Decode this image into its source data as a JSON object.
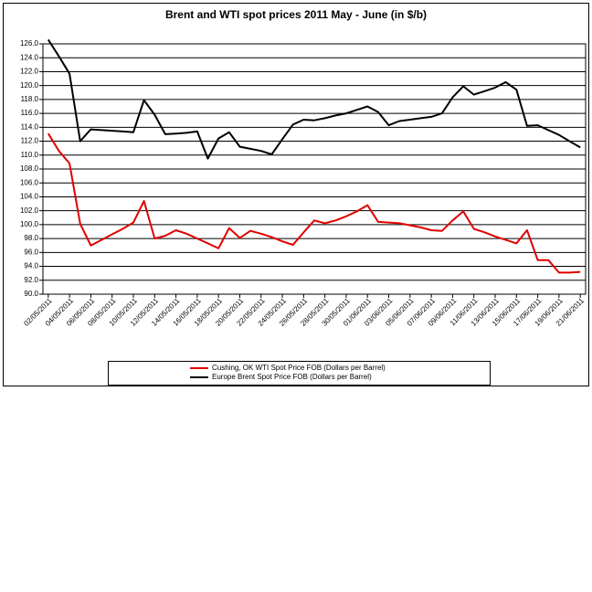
{
  "chart_data": {
    "type": "line",
    "title": "Brent and WTI spot prices 2011 May - June (in $/b)",
    "categories": [
      "02/05/2011",
      null,
      "04/05/2011",
      null,
      "06/05/2011",
      null,
      "08/05/2011",
      null,
      "10/05/2011",
      null,
      "12/05/2011",
      null,
      "14/05/2011",
      null,
      "16/05/2011",
      null,
      "18/05/2011",
      null,
      "20/05/2011",
      null,
      "22/05/2011",
      null,
      "24/05/2011",
      null,
      "26/05/2011",
      null,
      "28/05/2011",
      null,
      "30/05/2011",
      null,
      "01/06/2011",
      null,
      "03/06/2011",
      null,
      "05/06/2011",
      null,
      "07/06/2011",
      null,
      "09/06/2011",
      null,
      "11/06/2011",
      null,
      "13/06/2011",
      null,
      "15/06/2011",
      null,
      "17/06/2011",
      null,
      "19/06/2011",
      null,
      "21/06/2011"
    ],
    "series": [
      {
        "name": "Cushing, OK WTI Spot Price FOB (Dollars per Barrel)",
        "color": "#e00000",
        "values": [
          113.1,
          110.6,
          108.8,
          100.1,
          97.0,
          97.8,
          98.6,
          99.4,
          100.3,
          103.4,
          98.0,
          98.4,
          99.2,
          98.7,
          98.0,
          97.3,
          96.6,
          99.5,
          98.1,
          99.1,
          98.7,
          98.2,
          97.6,
          97.1,
          98.9,
          100.6,
          100.2,
          100.6,
          101.2,
          101.9,
          102.8,
          100.4,
          100.3,
          100.2,
          99.9,
          99.6,
          99.2,
          99.1,
          100.6,
          101.9,
          99.4,
          98.9,
          98.3,
          97.8,
          97.3,
          99.2,
          94.9,
          94.9,
          93.1,
          93.1,
          93.2
        ]
      },
      {
        "name": "Europe Brent Spot Price FOB (Dollars per Barrel)",
        "color": "#000000",
        "values": [
          126.6,
          124.2,
          121.7,
          112.0,
          113.7,
          113.6,
          113.5,
          113.4,
          113.3,
          117.9,
          115.8,
          113.0,
          113.1,
          113.2,
          113.4,
          109.5,
          112.4,
          113.3,
          111.2,
          110.9,
          110.6,
          110.1,
          112.3,
          114.4,
          115.1,
          115.0,
          115.3,
          115.7,
          116.0,
          116.5,
          117.0,
          116.2,
          114.3,
          114.9,
          115.1,
          115.3,
          115.5,
          116.0,
          118.3,
          119.9,
          118.7,
          119.2,
          119.7,
          120.5,
          119.4,
          114.2,
          114.3,
          113.6,
          112.9,
          112.0,
          111.1
        ]
      }
    ],
    "ylim": [
      90,
      126
    ],
    "yticks": [
      {
        "value": 90,
        "label": "90.0"
      },
      {
        "value": 92,
        "label": "92.0"
      },
      {
        "value": 94,
        "label": "94.0"
      },
      {
        "value": 96,
        "label": "96.0"
      },
      {
        "value": 98,
        "label": "98.0"
      },
      {
        "value": 100,
        "label": "100.0"
      },
      {
        "value": 102,
        "label": "102.0"
      },
      {
        "value": 104,
        "label": "104.0"
      },
      {
        "value": 106,
        "label": "106.0"
      },
      {
        "value": 108,
        "label": "108.0"
      },
      {
        "value": 110,
        "label": "110.0"
      },
      {
        "value": 112,
        "label": "112.0"
      },
      {
        "value": 114,
        "label": "114.0"
      },
      {
        "value": 116,
        "label": "116.0"
      },
      {
        "value": 118,
        "label": "118.0"
      },
      {
        "value": 120,
        "label": "120.0"
      },
      {
        "value": 122,
        "label": "122.0"
      },
      {
        "value": 124,
        "label": "124.0"
      },
      {
        "value": 126,
        "label": "126.0"
      }
    ],
    "grid": true,
    "legend": "bottom"
  }
}
